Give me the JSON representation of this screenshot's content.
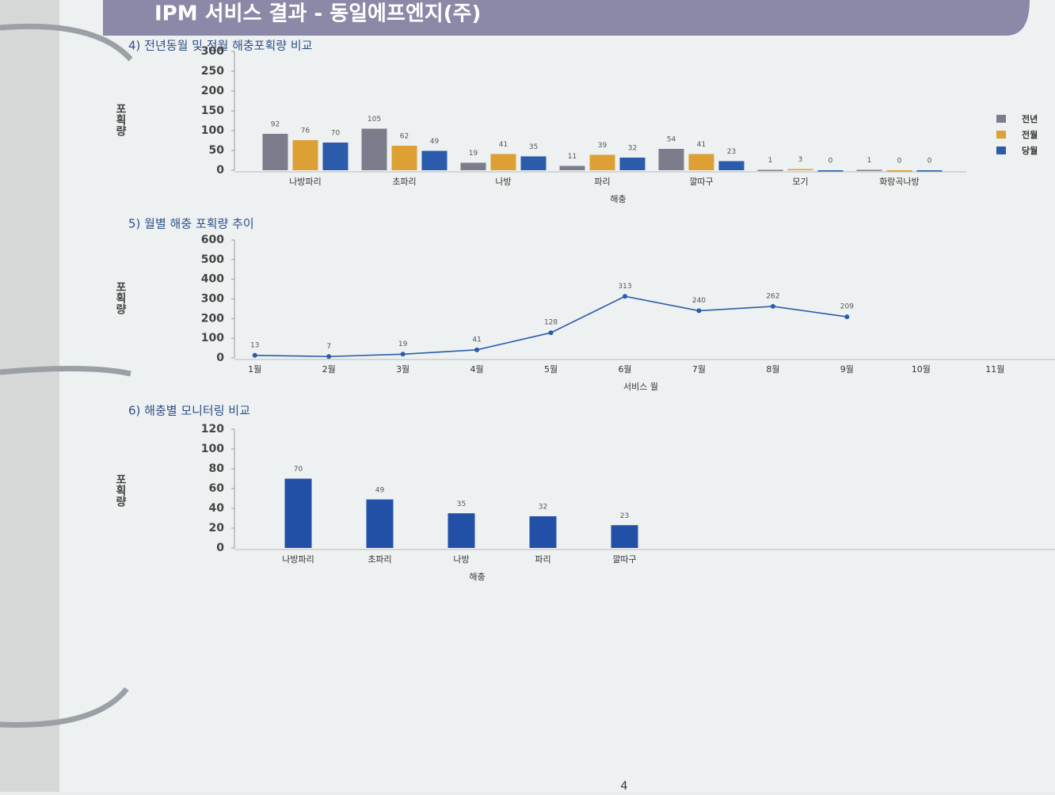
{
  "header": {
    "title": "IPM 서비스 결과 - 동일에프엔지(주)"
  },
  "page_number": "4",
  "chart_data": [
    {
      "type": "bar",
      "title": "4) 전년동월 및 전월 해충포획량 비교",
      "x_label": "해충",
      "y_label": "포획량",
      "categories": [
        "나방파리",
        "초파리",
        "나방",
        "파리",
        "깔따구",
        "모기",
        "화랑곡나방"
      ],
      "series": [
        {
          "name": "전년",
          "color": "#7c7d8c",
          "values": [
            92,
            105,
            19,
            11,
            54,
            1,
            1
          ]
        },
        {
          "name": "전월",
          "color": "#dca034",
          "values": [
            76,
            62,
            41,
            39,
            41,
            3,
            0
          ]
        },
        {
          "name": "당월",
          "color": "#2b5cab",
          "values": [
            70,
            49,
            35,
            32,
            23,
            0,
            0
          ]
        }
      ],
      "ylim": [
        0,
        300
      ],
      "yticks": [
        0,
        50,
        100,
        150,
        200,
        250,
        300
      ],
      "legend": "right"
    },
    {
      "type": "line",
      "title": "5) 월별 해충 포획량 추이",
      "x_label": "서비스 월",
      "y_label": "포획량",
      "categories": [
        "1월",
        "2월",
        "3월",
        "4월",
        "5월",
        "6월",
        "7월",
        "8월",
        "9월",
        "10월",
        "11월"
      ],
      "series": [
        {
          "name": null,
          "color": "#2b5cab",
          "values": [
            13,
            7,
            19,
            41,
            128,
            313,
            240,
            262,
            209,
            null,
            null
          ]
        }
      ],
      "ylim": [
        0,
        600
      ],
      "yticks": [
        0,
        100,
        200,
        300,
        400,
        500,
        600
      ]
    },
    {
      "type": "bar",
      "title": "6) 해충별 모니터링 비교",
      "x_label": "해충",
      "y_label": "포획량",
      "categories": [
        "나방파리",
        "초파리",
        "나방",
        "파리",
        "깔따구"
      ],
      "series": [
        {
          "name": null,
          "color": "#2150a6",
          "values": [
            70,
            49,
            35,
            32,
            23
          ]
        }
      ],
      "ylim": [
        0,
        120
      ],
      "yticks": [
        0,
        20,
        40,
        60,
        80,
        100,
        120
      ]
    }
  ]
}
